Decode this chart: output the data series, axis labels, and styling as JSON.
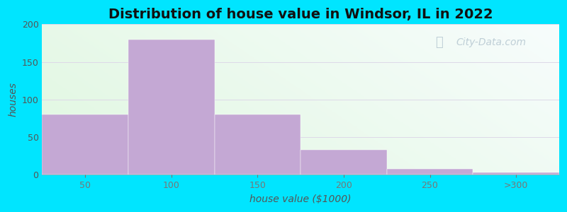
{
  "title": "Distribution of house value in Windsor, IL in 2022",
  "xlabel": "house value ($1000)",
  "ylabel": "houses",
  "bar_labels": [
    "50",
    "100",
    "150",
    "200",
    "250",
    ">300"
  ],
  "bar_values": [
    80,
    180,
    80,
    33,
    8,
    3
  ],
  "bar_color": "#c4a8d4",
  "ylim": [
    0,
    200
  ],
  "yticks": [
    0,
    50,
    100,
    150,
    200
  ],
  "background_outer": "#00e5ff",
  "grid_color": "#ddd8e8",
  "title_fontsize": 14,
  "axis_label_fontsize": 10,
  "tick_fontsize": 9,
  "watermark_text": "City-Data.com",
  "watermark_color": "#a8bcc8",
  "watermark_alpha": 0.7
}
